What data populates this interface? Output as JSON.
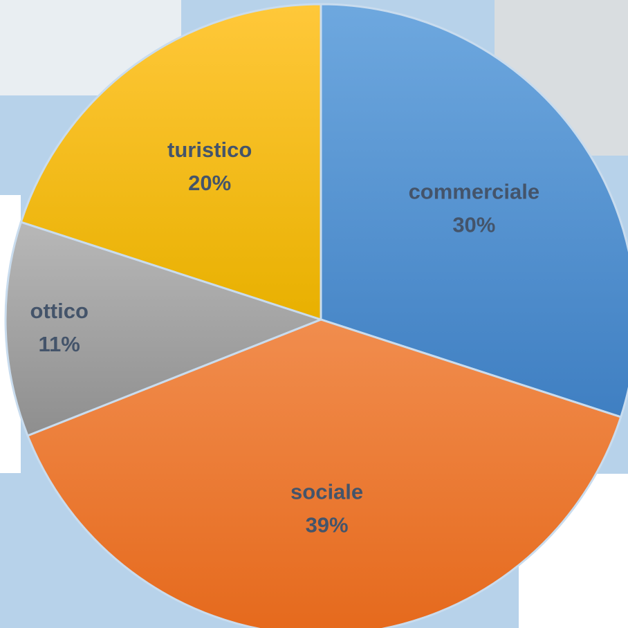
{
  "chart_data": {
    "type": "pie",
    "categories": [
      "commerciale",
      "sociale",
      "ottico",
      "turistico"
    ],
    "values": [
      30,
      39,
      11,
      20
    ],
    "value_labels": [
      "30%",
      "39%",
      "11%",
      "20%"
    ],
    "colors": [
      "#5b9bd5",
      "#ed7d31",
      "#a5a5a5",
      "#ffc000"
    ]
  }
}
